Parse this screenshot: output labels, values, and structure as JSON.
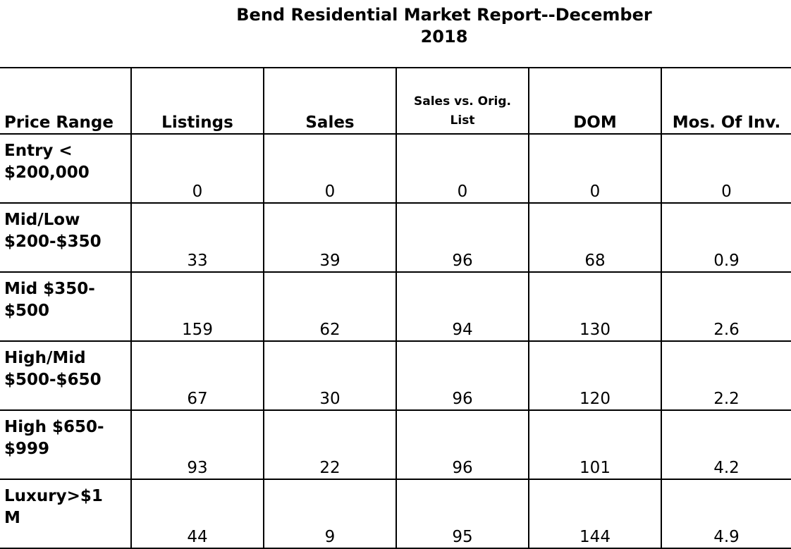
{
  "title_line1": "Bend Residential Market Report--December",
  "title_line2": "2018",
  "headers": {
    "price_range": "Price Range",
    "listings": "Listings",
    "sales": "Sales",
    "sales_vs_orig_line1": "Sales vs. Orig.",
    "sales_vs_orig_line2": "List",
    "dom": "DOM",
    "mos_of_inv": "Mos. Of Inv."
  },
  "rows": [
    {
      "range_line1": "Entry <",
      "range_line2": "$200,000",
      "listings": "0",
      "sales": "0",
      "sales_vs_orig": "0",
      "dom": "0",
      "mos_of_inv": "0"
    },
    {
      "range_line1": "Mid/Low",
      "range_line2": "$200-$350",
      "listings": "33",
      "sales": "39",
      "sales_vs_orig": "96",
      "dom": "68",
      "mos_of_inv": "0.9"
    },
    {
      "range_line1": "Mid $350-",
      "range_line2": "$500",
      "listings": "159",
      "sales": "62",
      "sales_vs_orig": "94",
      "dom": "130",
      "mos_of_inv": "2.6"
    },
    {
      "range_line1": "High/Mid",
      "range_line2": "$500-$650",
      "listings": "67",
      "sales": "30",
      "sales_vs_orig": "96",
      "dom": "120",
      "mos_of_inv": "2.2"
    },
    {
      "range_line1": "High $650-",
      "range_line2": "$999",
      "listings": "93",
      "sales": "22",
      "sales_vs_orig": "96",
      "dom": "101",
      "mos_of_inv": "4.2"
    },
    {
      "range_line1": "Luxury>$1",
      "range_line2": "M",
      "listings": "44",
      "sales": "9",
      "sales_vs_orig": "95",
      "dom": "144",
      "mos_of_inv": "4.9"
    }
  ]
}
